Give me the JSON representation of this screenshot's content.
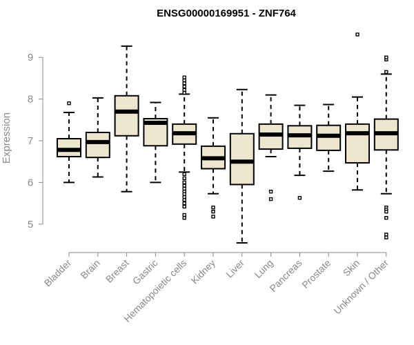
{
  "chart_data": {
    "type": "box",
    "title": "ENSG00000169951 - ZNF764",
    "xlabel": "",
    "ylabel": "Expression",
    "ylim": [
      4.5,
      9.6
    ],
    "yticks": [
      5,
      6,
      7,
      8,
      9
    ],
    "box_fill": "#ede6cf",
    "box_stroke": "#000000",
    "axis_color": "#888888",
    "categories": [
      "Bladder",
      "Brain",
      "Breast",
      "Gastric",
      "Hematopoietic cells",
      "Kidney",
      "Liver",
      "Lung",
      "Pancreas",
      "Prostate",
      "Skin",
      "Unknown / Other"
    ],
    "boxes": [
      {
        "whisker_low": 6.0,
        "q1": 6.62,
        "median": 6.78,
        "q3": 7.05,
        "whisker_high": 7.68,
        "outliers": [
          7.9
        ]
      },
      {
        "whisker_low": 6.13,
        "q1": 6.6,
        "median": 6.97,
        "q3": 7.2,
        "whisker_high": 8.03,
        "outliers": []
      },
      {
        "whisker_low": 5.78,
        "q1": 7.12,
        "median": 7.7,
        "q3": 8.08,
        "whisker_high": 9.27,
        "outliers": []
      },
      {
        "whisker_low": 6.0,
        "q1": 6.88,
        "median": 7.43,
        "q3": 7.53,
        "whisker_high": 7.92,
        "outliers": []
      },
      {
        "whisker_low": 6.25,
        "q1": 6.92,
        "median": 7.18,
        "q3": 7.4,
        "whisker_high": 8.12,
        "outliers": [
          8.15,
          8.22,
          8.3,
          8.38,
          8.45,
          8.52,
          6.2,
          6.1,
          6.0,
          5.92,
          5.85,
          5.78,
          5.72,
          5.65,
          5.58,
          5.5,
          5.42,
          5.22,
          5.15
        ]
      },
      {
        "whisker_low": 5.73,
        "q1": 6.33,
        "median": 6.58,
        "q3": 6.87,
        "whisker_high": 7.55,
        "outliers": [
          5.4,
          5.3,
          5.18
        ]
      },
      {
        "whisker_low": 4.55,
        "q1": 5.95,
        "median": 6.5,
        "q3": 7.17,
        "whisker_high": 8.23,
        "outliers": []
      },
      {
        "whisker_low": 6.62,
        "q1": 6.8,
        "median": 7.15,
        "q3": 7.4,
        "whisker_high": 8.1,
        "outliers": [
          5.78,
          5.6
        ]
      },
      {
        "whisker_low": 6.17,
        "q1": 6.82,
        "median": 7.13,
        "q3": 7.36,
        "whisker_high": 7.85,
        "outliers": [
          5.63
        ]
      },
      {
        "whisker_low": 6.27,
        "q1": 6.77,
        "median": 7.12,
        "q3": 7.37,
        "whisker_high": 7.87,
        "outliers": []
      },
      {
        "whisker_low": 5.82,
        "q1": 6.47,
        "median": 7.18,
        "q3": 7.4,
        "whisker_high": 8.05,
        "outliers": [
          9.55
        ]
      },
      {
        "whisker_low": 5.73,
        "q1": 6.78,
        "median": 7.18,
        "q3": 7.52,
        "whisker_high": 8.6,
        "outliers": [
          8.65,
          8.95,
          9.0,
          5.4,
          5.35,
          5.3,
          5.15,
          4.75,
          4.68
        ]
      }
    ]
  }
}
